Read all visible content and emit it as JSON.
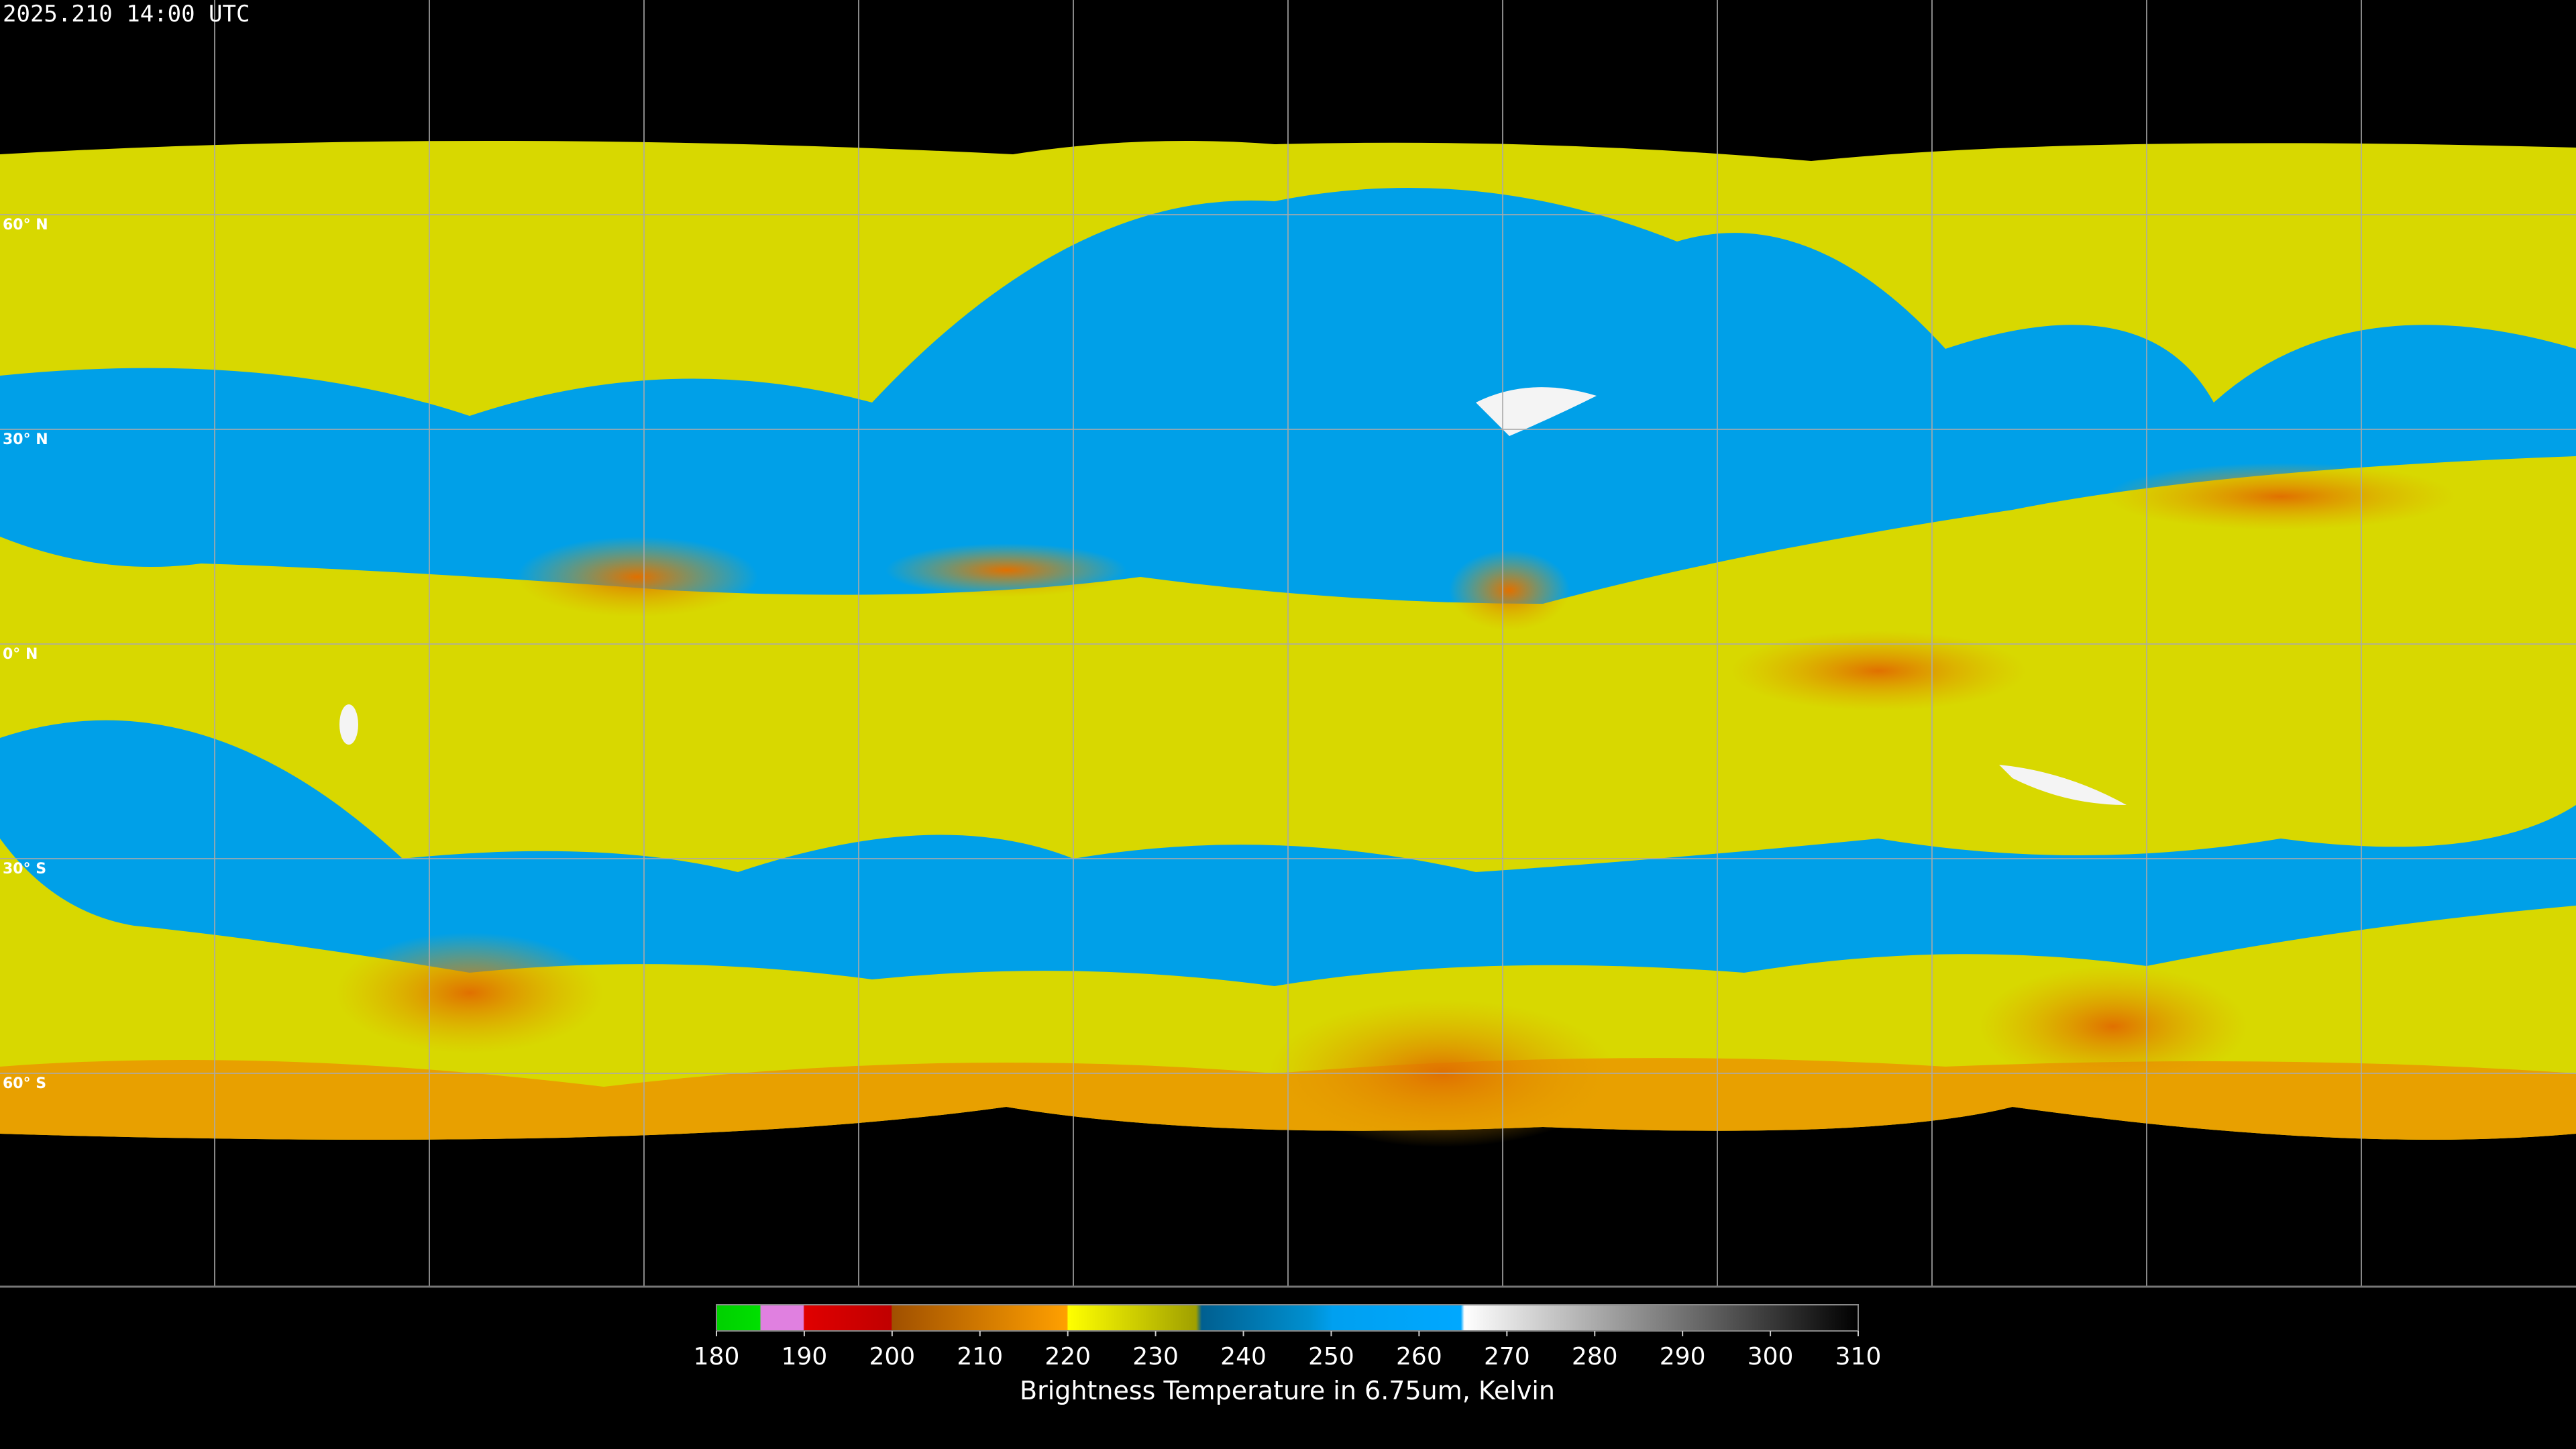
{
  "timestamp": "2025.210 14:00 UTC",
  "lat_labels": [
    "60° N",
    "30° N",
    "0° N",
    "30° S",
    "60° S"
  ],
  "colorbar": {
    "ticks": [
      180,
      190,
      200,
      210,
      220,
      230,
      240,
      250,
      260,
      270,
      280,
      290,
      300,
      310
    ],
    "label": "Brightness Temperature in 6.75um, Kelvin"
  }
}
